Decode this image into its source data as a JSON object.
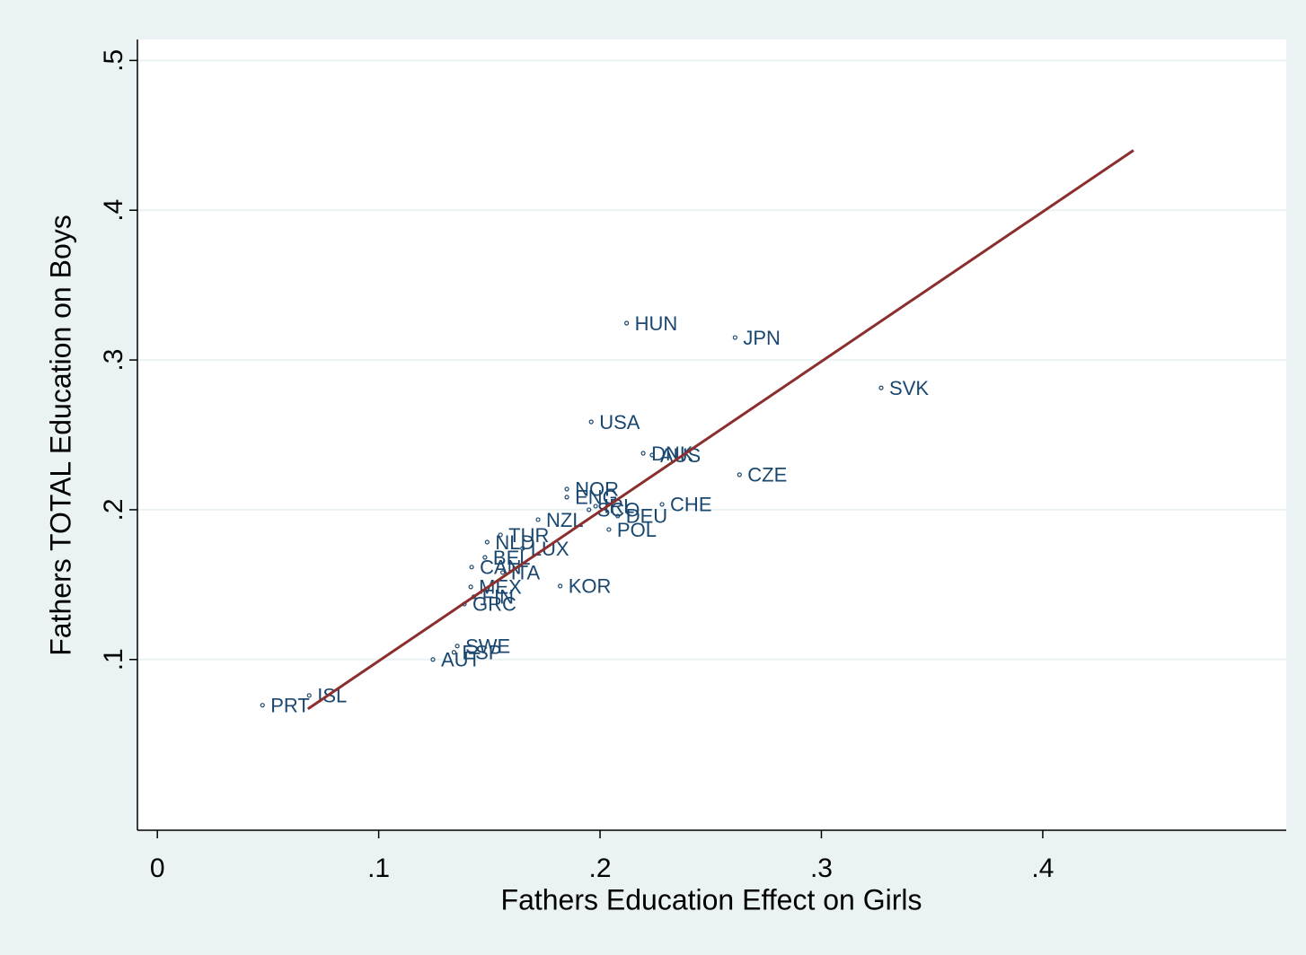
{
  "chart_data": {
    "type": "scatter",
    "xlabel": "Fathers Education Effect on Girls",
    "ylabel": "Fathers TOTAL Education on Boys",
    "xlim": [
      -0.009,
      0.51
    ],
    "ylim": [
      -0.014,
      0.514
    ],
    "xticks": [
      0,
      {
        "value": 0.1,
        "label": ".1"
      },
      {
        "value": 0.2,
        "label": ".2"
      },
      {
        "value": 0.3,
        "label": ".3"
      },
      {
        "value": 0.4,
        "label": ".4"
      }
    ],
    "yticks": [
      {
        "value": 0.1,
        "label": ".1"
      },
      {
        "value": 0.2,
        "label": ".2"
      },
      {
        "value": 0.3,
        "label": ".3"
      },
      {
        "value": 0.4,
        "label": ".4"
      },
      {
        "value": 0.5,
        "label": ".5"
      }
    ],
    "grid": true,
    "points": {
      "color": "#1a476f",
      "labels": [
        "HUN",
        "JPN",
        "SVK",
        "USA",
        "DNK",
        "AUS",
        "CZE",
        "NOR",
        "ENG",
        "IRL",
        "CHE",
        "SCO",
        "DEU",
        "POL",
        "NZL",
        "TUR",
        "NLD",
        "LUX",
        "BEL",
        "CAN",
        "ITA",
        "MEX",
        "FIN",
        "GRC",
        "KOR",
        "SWE",
        "ESP",
        "AUT",
        "ISL",
        "PRT"
      ],
      "x": [
        0.212,
        0.261,
        0.327,
        0.196,
        0.2195,
        0.2235,
        0.263,
        0.185,
        0.185,
        0.198,
        0.228,
        0.195,
        0.208,
        0.204,
        0.172,
        0.155,
        0.149,
        0.165,
        0.148,
        0.142,
        0.156,
        0.1416,
        0.143,
        0.1387,
        0.182,
        0.1355,
        0.134,
        0.1245,
        0.0686,
        0.0475
      ],
      "y": [
        0.3246,
        0.315,
        0.2814,
        0.2587,
        0.2377,
        0.2365,
        0.2234,
        0.2138,
        0.2084,
        0.2024,
        0.2036,
        0.2,
        0.1958,
        0.1868,
        0.1934,
        0.1832,
        0.1784,
        0.1742,
        0.1682,
        0.1617,
        0.1581,
        0.1485,
        0.1419,
        0.1371,
        0.1491,
        0.109,
        0.1048,
        0.1,
        0.076,
        0.0695
      ]
    },
    "fit_line": {
      "color": "#8b2e2e",
      "x": [
        0.068,
        0.441
      ],
      "y": [
        0.067,
        0.44
      ]
    }
  }
}
